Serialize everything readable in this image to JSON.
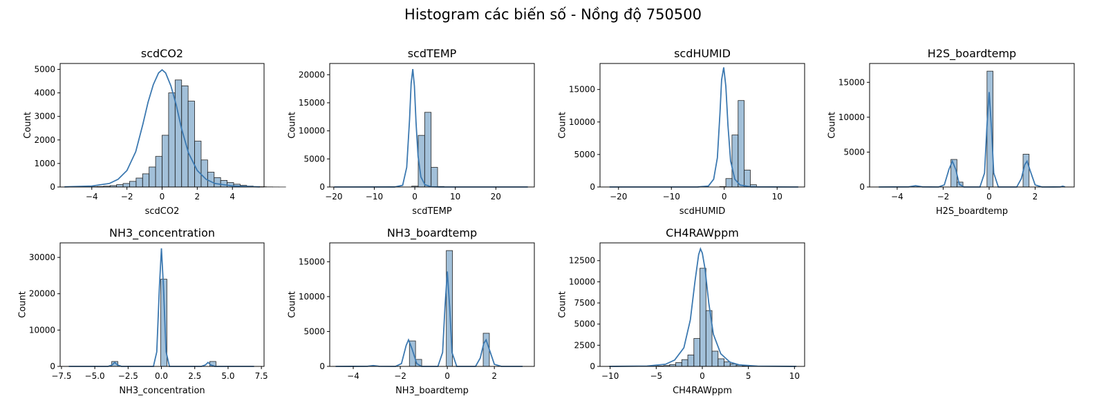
{
  "page_title": "Histogram các biến số - Nồng độ 750500",
  "chart_data": [
    {
      "type": "histogram",
      "title": "scdCO2",
      "xlabel": "scdCO2",
      "ylabel": "Count",
      "xlim": [
        -5.8,
        5.8
      ],
      "ylim": [
        0,
        5250
      ],
      "xticks": [
        -6,
        -4,
        -2,
        0,
        2,
        4,
        6
      ],
      "yticks": [
        0,
        1000,
        2000,
        3000,
        4000,
        5000
      ],
      "bin_start": -5.55,
      "bin_width": 0.37,
      "counts": [
        2,
        3,
        5,
        8,
        12,
        20,
        35,
        60,
        100,
        150,
        240,
        380,
        560,
        850,
        1300,
        2200,
        4000,
        4550,
        4300,
        3650,
        1950,
        1150,
        630,
        400,
        280,
        190,
        120,
        70,
        40,
        20,
        12,
        6,
        3,
        1
      ],
      "kde": [
        [
          -5.55,
          5
        ],
        [
          -4,
          40
        ],
        [
          -3,
          150
        ],
        [
          -2.5,
          330
        ],
        [
          -2,
          700
        ],
        [
          -1.5,
          1500
        ],
        [
          -1.1,
          2650
        ],
        [
          -0.8,
          3600
        ],
        [
          -0.5,
          4350
        ],
        [
          -0.2,
          4850
        ],
        [
          0,
          4980
        ],
        [
          0.2,
          4850
        ],
        [
          0.5,
          4300
        ],
        [
          0.8,
          3500
        ],
        [
          1.1,
          2500
        ],
        [
          1.5,
          1450
        ],
        [
          2,
          700
        ],
        [
          2.5,
          330
        ],
        [
          3,
          150
        ],
        [
          4,
          45
        ],
        [
          5.55,
          4
        ]
      ]
    },
    {
      "type": "histogram",
      "title": "scdTEMP",
      "xlabel": "scdTEMP",
      "ylabel": "Count",
      "xlim": [
        -21,
        29.5
      ],
      "ylim": [
        0,
        22000
      ],
      "xticks": [
        -20,
        -10,
        0,
        10,
        20,
        30
      ],
      "yticks": [
        0,
        5000,
        10000,
        15000,
        20000
      ],
      "bin_start": -19.9,
      "bin_width": 1.595,
      "counts": [
        0,
        0,
        0,
        0,
        0,
        0,
        0,
        0,
        0,
        0,
        0,
        2,
        150,
        9200,
        13300,
        3500,
        90,
        10,
        3,
        1,
        0,
        0,
        0,
        0,
        0,
        0,
        0,
        0,
        0,
        0,
        0
      ],
      "kde": [
        [
          -19.9,
          0
        ],
        [
          -5,
          5
        ],
        [
          -3,
          300
        ],
        [
          -2,
          3500
        ],
        [
          -1.3,
          12000
        ],
        [
          -0.9,
          18500
        ],
        [
          -0.5,
          21000
        ],
        [
          -0.1,
          18000
        ],
        [
          0.3,
          11500
        ],
        [
          0.8,
          5500
        ],
        [
          1.5,
          1800
        ],
        [
          2.5,
          400
        ],
        [
          4,
          50
        ],
        [
          6,
          5
        ],
        [
          27.9,
          0
        ]
      ]
    },
    {
      "type": "histogram",
      "title": "scdHUMID",
      "xlabel": "scdHUMID",
      "ylabel": "Count",
      "xlim": [
        -23.5,
        15.2
      ],
      "ylim": [
        0,
        19000
      ],
      "xticks": [
        -20,
        -10,
        0,
        10
      ],
      "yticks": [
        0,
        5000,
        10000,
        15000
      ],
      "bin_start": -21.7,
      "bin_width": 1.158,
      "counts": [
        0,
        0,
        0,
        0,
        0,
        0,
        0,
        0,
        0,
        0,
        0,
        0,
        0,
        0,
        0,
        0,
        3,
        10,
        60,
        1300,
        8000,
        13300,
        2600,
        350,
        60,
        10,
        2,
        0,
        0,
        0,
        0
      ],
      "kde": [
        [
          -21.7,
          0
        ],
        [
          -5,
          5
        ],
        [
          -3,
          150
        ],
        [
          -2,
          1200
        ],
        [
          -1.3,
          4500
        ],
        [
          -0.8,
          11500
        ],
        [
          -0.5,
          16500
        ],
        [
          -0.1,
          18400
        ],
        [
          0.3,
          15500
        ],
        [
          0.7,
          9500
        ],
        [
          1.2,
          4000
        ],
        [
          2,
          1200
        ],
        [
          3,
          300
        ],
        [
          5,
          20
        ],
        [
          14,
          0
        ]
      ]
    },
    {
      "type": "histogram",
      "title": "H2S_boardtemp",
      "xlabel": "H2S_boardtemp",
      "ylabel": "Count",
      "xlim": [
        -5.2,
        3.7
      ],
      "ylim": [
        0,
        17700
      ],
      "xticks": [
        -4,
        -2,
        0,
        2
      ],
      "yticks": [
        0,
        5000,
        10000,
        15000
      ],
      "bin_start": -4.8,
      "bin_width": 0.2615,
      "counts": [
        0,
        0,
        0,
        0,
        0,
        0,
        0,
        0,
        0,
        0,
        0,
        0,
        3950,
        700,
        0,
        0,
        0,
        0,
        16600,
        0,
        0,
        0,
        0,
        0,
        4700,
        0,
        0,
        0,
        0,
        0,
        0
      ],
      "kde": [
        [
          -4.8,
          0
        ],
        [
          -3.5,
          20
        ],
        [
          -3.2,
          180
        ],
        [
          -2.9,
          20
        ],
        [
          -2.2,
          0
        ],
        [
          -1.95,
          300
        ],
        [
          -1.75,
          2500
        ],
        [
          -1.6,
          3700
        ],
        [
          -1.45,
          2500
        ],
        [
          -1.3,
          400
        ],
        [
          -1.1,
          0
        ],
        [
          -0.4,
          0
        ],
        [
          -0.2,
          2000
        ],
        [
          -0.1,
          8500
        ],
        [
          0,
          13600
        ],
        [
          0.1,
          8500
        ],
        [
          0.2,
          2000
        ],
        [
          0.4,
          0
        ],
        [
          1.2,
          0
        ],
        [
          1.4,
          1200
        ],
        [
          1.55,
          3200
        ],
        [
          1.65,
          3700
        ],
        [
          1.8,
          2200
        ],
        [
          2,
          300
        ],
        [
          2.3,
          0
        ],
        [
          3.1,
          10
        ],
        [
          3.2,
          120
        ],
        [
          3.3,
          10
        ]
      ]
    },
    {
      "type": "histogram",
      "title": "NH3_concentration",
      "xlabel": "NH3_concentration",
      "ylabel": "Count",
      "xlim": [
        -7.6,
        7.7
      ],
      "ylim": [
        0,
        34000
      ],
      "xticks": [
        -7.5,
        -5.0,
        -2.5,
        0.0,
        2.5,
        5.0,
        7.5
      ],
      "yticks": [
        0,
        10000,
        20000,
        30000
      ],
      "bin_start": -6.95,
      "bin_width": 0.46,
      "counts": [
        0,
        0,
        0,
        0,
        0,
        0,
        0,
        1350,
        0,
        0,
        0,
        0,
        0,
        0,
        0,
        24000,
        0,
        0,
        0,
        0,
        0,
        0,
        0,
        1350,
        0,
        0,
        0,
        0,
        0,
        0
      ],
      "kde": [
        [
          -6.95,
          0
        ],
        [
          -4.0,
          0
        ],
        [
          -3.7,
          400
        ],
        [
          -3.5,
          1100
        ],
        [
          -3.3,
          400
        ],
        [
          -3.0,
          0
        ],
        [
          -0.6,
          0
        ],
        [
          -0.35,
          4000
        ],
        [
          -0.15,
          22000
        ],
        [
          0,
          32500
        ],
        [
          0.15,
          22000
        ],
        [
          0.35,
          4000
        ],
        [
          0.6,
          0
        ],
        [
          3.0,
          0
        ],
        [
          3.3,
          400
        ],
        [
          3.5,
          1100
        ],
        [
          3.7,
          400
        ],
        [
          4.0,
          0
        ],
        [
          6.95,
          0
        ]
      ]
    },
    {
      "type": "histogram",
      "title": "NH3_boardtemp",
      "xlabel": "NH3_boardtemp",
      "ylabel": "Count",
      "xlim": [
        -5.0,
        3.7
      ],
      "ylim": [
        0,
        17700
      ],
      "xticks": [
        -4,
        -2,
        0,
        2
      ],
      "yticks": [
        0,
        5000,
        10000,
        15000
      ],
      "bin_start": -4.75,
      "bin_width": 0.2615,
      "counts": [
        0,
        0,
        0,
        0,
        0,
        0,
        0,
        0,
        0,
        0,
        0,
        0,
        3650,
        1000,
        0,
        0,
        0,
        0,
        16600,
        0,
        0,
        0,
        0,
        0,
        4750,
        0,
        0,
        0,
        0,
        0
      ],
      "kde": [
        [
          -4.75,
          0
        ],
        [
          -3.4,
          10
        ],
        [
          -3.15,
          120
        ],
        [
          -2.9,
          10
        ],
        [
          -2.2,
          0
        ],
        [
          -1.95,
          400
        ],
        [
          -1.75,
          3000
        ],
        [
          -1.65,
          3800
        ],
        [
          -1.5,
          2500
        ],
        [
          -1.3,
          400
        ],
        [
          -1.1,
          0
        ],
        [
          -0.4,
          0
        ],
        [
          -0.2,
          2000
        ],
        [
          -0.1,
          8500
        ],
        [
          0,
          13600
        ],
        [
          0.1,
          8500
        ],
        [
          0.2,
          2000
        ],
        [
          0.4,
          0
        ],
        [
          1.2,
          0
        ],
        [
          1.4,
          1200
        ],
        [
          1.55,
          3300
        ],
        [
          1.65,
          3800
        ],
        [
          1.8,
          2300
        ],
        [
          2,
          300
        ],
        [
          2.3,
          0
        ],
        [
          3.2,
          0
        ]
      ]
    },
    {
      "type": "histogram",
      "title": "CH4RAWppm",
      "xlabel": "CH4RAWppm",
      "ylabel": "Count",
      "xlim": [
        -11.1,
        11.1
      ],
      "ylim": [
        0,
        14600
      ],
      "xticks": [
        -10,
        -5,
        0,
        5,
        10
      ],
      "yticks": [
        0,
        2500,
        5000,
        7500,
        10000,
        12500
      ],
      "bin_start": -10.1,
      "bin_width": 0.656,
      "counts": [
        2,
        3,
        4,
        5,
        8,
        10,
        15,
        30,
        50,
        100,
        220,
        450,
        800,
        1350,
        3300,
        11600,
        6600,
        1800,
        900,
        550,
        300,
        150,
        70,
        30,
        12,
        6,
        3,
        2,
        1,
        1,
        0
      ],
      "kde": [
        [
          -10.1,
          0
        ],
        [
          -6,
          40
        ],
        [
          -4,
          250
        ],
        [
          -3,
          750
        ],
        [
          -2,
          2200
        ],
        [
          -1.3,
          5500
        ],
        [
          -0.8,
          10000
        ],
        [
          -0.4,
          13200
        ],
        [
          -0.2,
          13900
        ],
        [
          0,
          13400
        ],
        [
          0.3,
          11500
        ],
        [
          0.7,
          7500
        ],
        [
          1.2,
          3800
        ],
        [
          2,
          1500
        ],
        [
          3,
          500
        ],
        [
          4,
          180
        ],
        [
          6,
          30
        ],
        [
          10.2,
          0
        ]
      ]
    }
  ]
}
